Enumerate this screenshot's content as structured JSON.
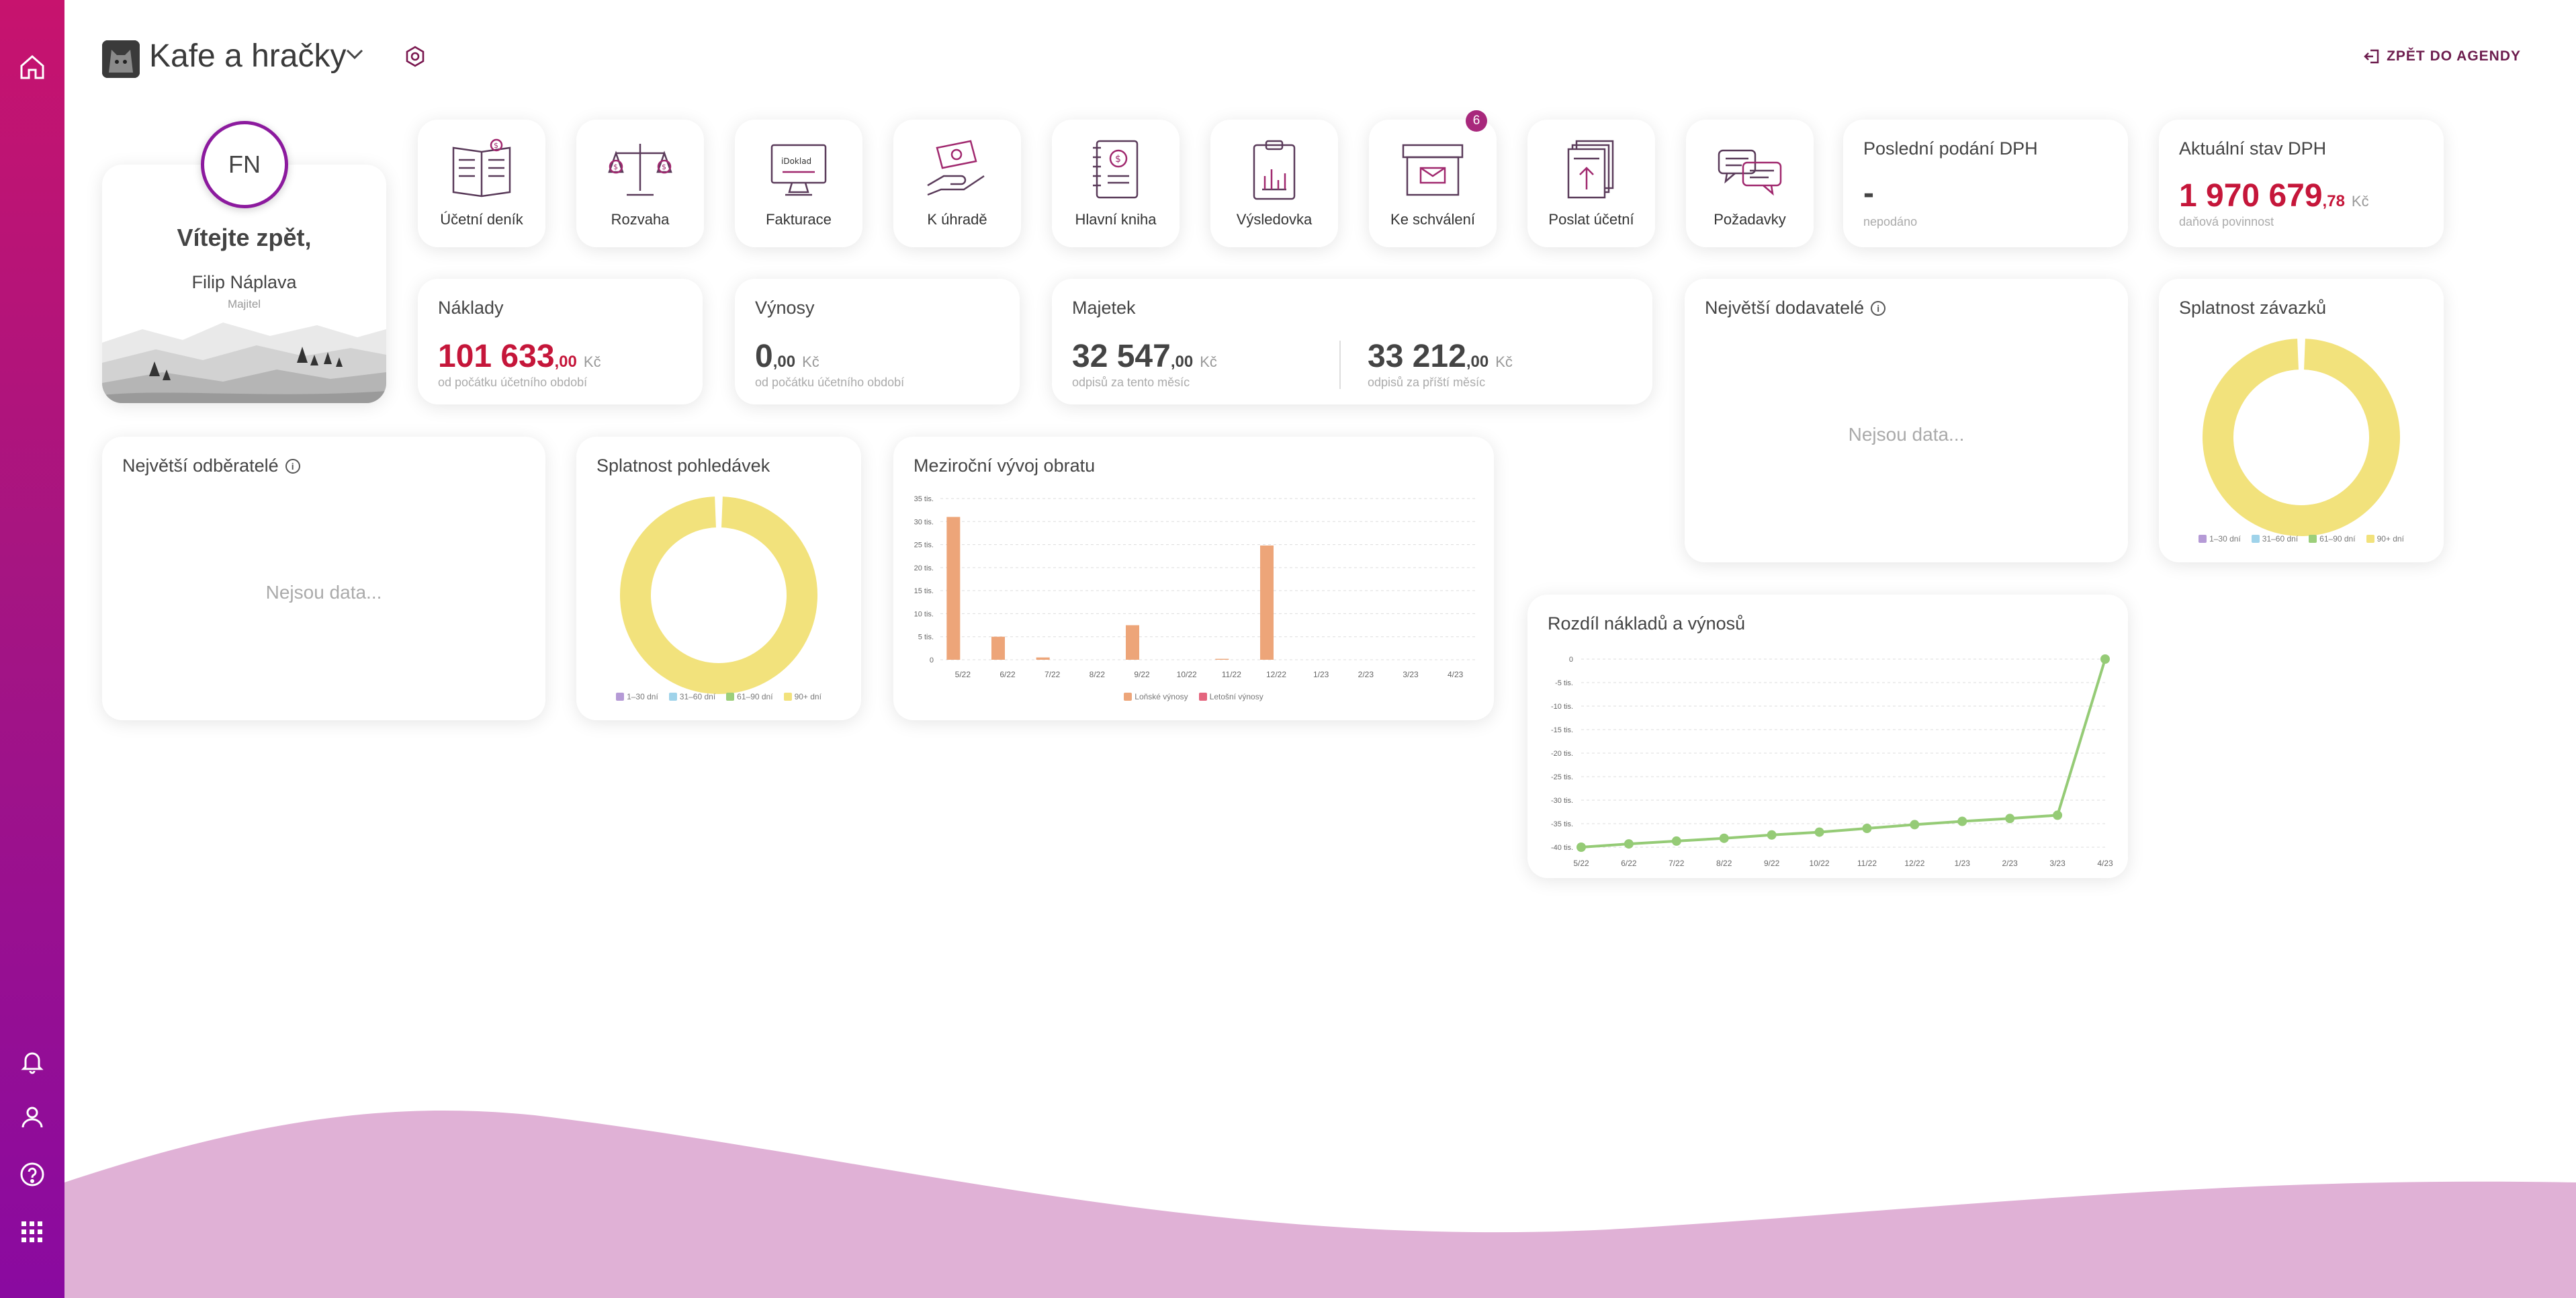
{
  "header": {
    "title": "Kafe a hračky",
    "back_label": "ZPĚT DO AGENDY"
  },
  "welcome": {
    "initials": "FN",
    "greeting": "Vítejte zpět,",
    "name": "Filip Náplava",
    "role": "Majitel"
  },
  "tiles": [
    {
      "label": "Účetní deník",
      "icon": "journal-icon"
    },
    {
      "label": "Rozvaha",
      "icon": "scales-icon"
    },
    {
      "label": "Fakturace",
      "icon": "invoice-monitor-icon"
    },
    {
      "label": "K úhradě",
      "icon": "payment-hand-icon"
    },
    {
      "label": "Hlavní kniha",
      "icon": "ledger-book-icon"
    },
    {
      "label": "Výsledovka",
      "icon": "clipboard-chart-icon"
    },
    {
      "label": "Ke schválení",
      "icon": "inbox-box-icon",
      "badge": "6"
    },
    {
      "label": "Poslat účetní",
      "icon": "upload-document-icon"
    },
    {
      "label": "Požadavky",
      "icon": "chat-bubbles-icon"
    }
  ],
  "dph_last": {
    "title": "Poslední podání DPH",
    "value": "-",
    "sub": "nepodáno"
  },
  "dph_current": {
    "title": "Aktuální stav DPH",
    "value": "1 970 679",
    "decimals": ",78",
    "currency": "Kč",
    "sub": "daňová povinnost"
  },
  "naklady": {
    "title": "Náklady",
    "value": "101 633",
    "decimals": ",00",
    "currency": "Kč",
    "sub": "od počátku účetního období"
  },
  "vynosy": {
    "title": "Výnosy",
    "value": "0",
    "decimals": ",00",
    "currency": "Kč",
    "sub": "od počátku účetního období"
  },
  "majetek": {
    "title": "Majetek",
    "this_value": "32 547",
    "this_decimals": ",00",
    "this_sub": "odpisů za tento měsíc",
    "next_value": "33 212",
    "next_decimals": ",00",
    "next_sub": "odpisů za příští měsíc",
    "currency": "Kč"
  },
  "suppliers": {
    "title": "Největší dodavatelé",
    "nodata": "Nejsou data..."
  },
  "customers": {
    "title": "Největší odběratelé",
    "nodata": "Nejsou data..."
  },
  "legend_ranges": [
    "1–30 dní",
    "31–60 dní",
    "61–90 dní",
    "90+ dní"
  ],
  "colors": {
    "range1": "#b59ad6",
    "range2": "#9fd3ea",
    "range3": "#9ccf7a",
    "range4": "#f2e27c",
    "bar_last": "#eda579",
    "bar_this": "#e4657e",
    "line": "#95cb76"
  },
  "chart_data": [
    {
      "id": "splatnost-zavazku",
      "type": "pie",
      "title": "Splatnost závazků",
      "labels": [
        "1–30 dní",
        "31–60 dní",
        "61–90 dní",
        "90+ dní"
      ],
      "values": [
        0,
        0,
        0,
        100
      ],
      "legend": "bottom"
    },
    {
      "id": "splatnost-pohledavek",
      "type": "pie",
      "title": "Splatnost pohledávek",
      "labels": [
        "1–30 dní",
        "31–60 dní",
        "61–90 dní",
        "90+ dní"
      ],
      "values": [
        0,
        0,
        0,
        100
      ],
      "legend": "bottom"
    },
    {
      "id": "mezirocni-vyvoj",
      "type": "bar",
      "title": "Meziroční vývoj obratu",
      "categories": [
        "5/22",
        "6/22",
        "7/22",
        "8/22",
        "9/22",
        "10/22",
        "11/22",
        "12/22",
        "1/23",
        "2/23",
        "3/23",
        "4/23"
      ],
      "series": [
        {
          "name": "Loňské výnosy",
          "values": [
            31000,
            5000,
            500,
            0,
            7500,
            0,
            200,
            24800,
            0,
            0,
            0,
            0
          ]
        },
        {
          "name": "Letošní výnosy",
          "values": [
            0,
            0,
            0,
            0,
            0,
            0,
            0,
            0,
            0,
            0,
            0,
            0
          ]
        }
      ],
      "yticks": [
        "0",
        "5 tis.",
        "10 tis.",
        "15 tis.",
        "20 tis.",
        "25 tis.",
        "30 tis.",
        "35 tis."
      ],
      "ylim": [
        0,
        35000
      ],
      "grid": true,
      "legend": "bottom"
    },
    {
      "id": "rozdil-nakladu",
      "type": "line",
      "title": "Rozdíl nákladů a výnosů",
      "categories": [
        "5/22",
        "6/22",
        "7/22",
        "8/22",
        "9/22",
        "10/22",
        "11/22",
        "12/22",
        "1/23",
        "2/23",
        "3/23",
        "4/23"
      ],
      "values": [
        -40000,
        -39300,
        -38700,
        -38100,
        -37400,
        -36800,
        -36000,
        -35200,
        -34500,
        -33900,
        -33200,
        0
      ],
      "yticks": [
        "-40 tis.",
        "-35 tis.",
        "-30 tis.",
        "-25 tis.",
        "-20 tis.",
        "-15 tis.",
        "-10 tis.",
        "-5 tis.",
        "0"
      ],
      "ylim": [
        -40000,
        0
      ],
      "grid": true
    }
  ]
}
